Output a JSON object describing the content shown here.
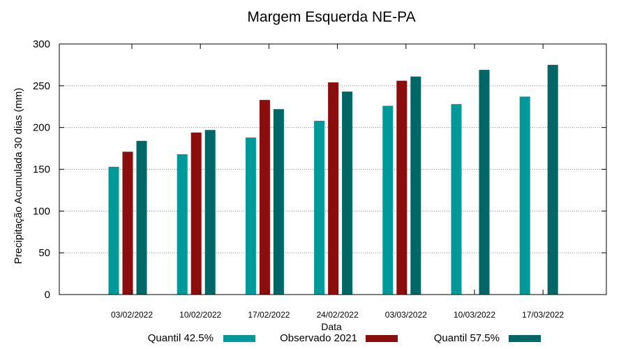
{
  "chart_data": {
    "type": "bar",
    "title": "Margem Esquerda NE-PA",
    "xlabel": "Data",
    "ylabel": "Precipitação Acumulada 30 dias (mm)",
    "ylim": [
      0,
      300
    ],
    "yticks": [
      0,
      50,
      100,
      150,
      200,
      250,
      300
    ],
    "grid": true,
    "legend_position": "bottom",
    "categories": [
      "03/02/2022",
      "10/02/2022",
      "17/02/2022",
      "24/02/2022",
      "03/03/2022",
      "10/03/2022",
      "17/03/2022"
    ],
    "series": [
      {
        "name": "Quantil 42.5%",
        "color": "#009999",
        "values": [
          153,
          168,
          188,
          208,
          226,
          228,
          237
        ]
      },
      {
        "name": "Observado 2021",
        "color": "#8b0e0e",
        "values": [
          171,
          194,
          233,
          254,
          256,
          null,
          null
        ]
      },
      {
        "name": "Quantil 57.5%",
        "color": "#006666",
        "values": [
          184,
          197,
          222,
          243,
          261,
          269,
          275
        ]
      }
    ]
  }
}
